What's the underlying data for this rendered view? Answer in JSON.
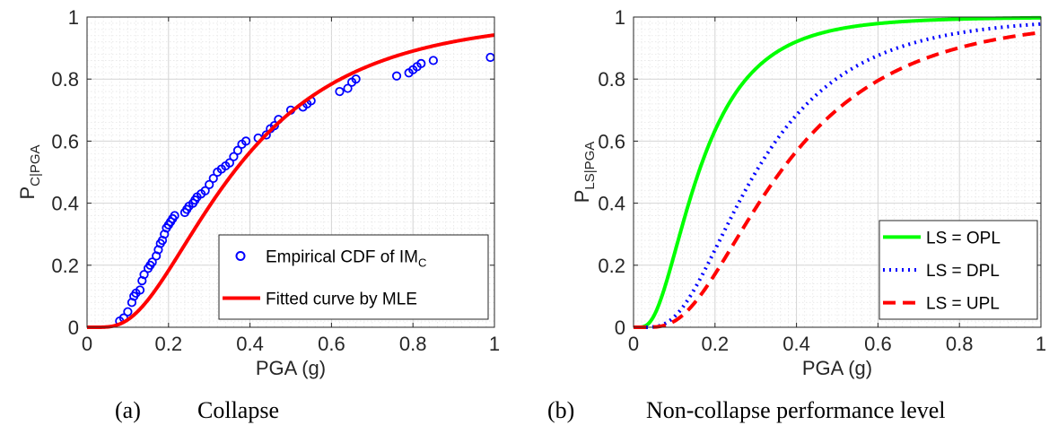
{
  "colors": {
    "red": "#ff0000",
    "green": "#00ff00",
    "blue": "#0000ff",
    "scatter": "#0000ff"
  },
  "chart_data": [
    {
      "type": "scatter",
      "caption_letter": "(a)",
      "caption_text": "Collapse",
      "xlabel": "PGA (g)",
      "ylabel_main": "P",
      "ylabel_sub": "C|PGA",
      "xlim": [
        0,
        1
      ],
      "ylim": [
        0,
        1
      ],
      "xticks": [
        "0",
        "0.2",
        "0.4",
        "0.6",
        "0.8",
        "1"
      ],
      "yticks": [
        "0",
        "0.2",
        "0.4",
        "0.6",
        "0.8",
        "1"
      ],
      "grid": true,
      "legend_position": "bottom-right",
      "legend": [
        {
          "label_main": "Empirical CDF of IM",
          "label_sub": "C",
          "style": "circle",
          "color": "#0000ff"
        },
        {
          "label_main": "Fitted curve by MLE",
          "label_sub": "",
          "style": "line",
          "color": "#ff0000"
        }
      ],
      "series": [
        {
          "kind": "points",
          "x": [
            0.08,
            0.09,
            0.1,
            0.11,
            0.115,
            0.12,
            0.13,
            0.135,
            0.14,
            0.15,
            0.155,
            0.16,
            0.17,
            0.175,
            0.18,
            0.185,
            0.19,
            0.195,
            0.2,
            0.205,
            0.21,
            0.215,
            0.24,
            0.245,
            0.25,
            0.26,
            0.265,
            0.27,
            0.28,
            0.29,
            0.3,
            0.31,
            0.32,
            0.33,
            0.34,
            0.35,
            0.36,
            0.37,
            0.38,
            0.39,
            0.42,
            0.44,
            0.45,
            0.46,
            0.47,
            0.5,
            0.53,
            0.54,
            0.55,
            0.62,
            0.64,
            0.65,
            0.66,
            0.76,
            0.79,
            0.8,
            0.81,
            0.82,
            0.85,
            0.99
          ],
          "y": [
            0.02,
            0.03,
            0.05,
            0.08,
            0.1,
            0.11,
            0.12,
            0.15,
            0.17,
            0.19,
            0.2,
            0.21,
            0.23,
            0.25,
            0.27,
            0.28,
            0.3,
            0.32,
            0.33,
            0.34,
            0.35,
            0.36,
            0.37,
            0.38,
            0.39,
            0.4,
            0.41,
            0.42,
            0.43,
            0.44,
            0.46,
            0.48,
            0.5,
            0.51,
            0.52,
            0.53,
            0.55,
            0.57,
            0.59,
            0.6,
            0.61,
            0.62,
            0.64,
            0.65,
            0.67,
            0.7,
            0.71,
            0.72,
            0.73,
            0.76,
            0.77,
            0.79,
            0.8,
            0.81,
            0.82,
            0.83,
            0.84,
            0.85,
            0.86,
            0.87
          ]
        },
        {
          "kind": "lognormal-cdf",
          "theta": 0.36,
          "beta": 0.65,
          "style": "solid",
          "color": "#ff0000"
        }
      ]
    },
    {
      "type": "line",
      "caption_letter": "(b)",
      "caption_text": "Non-collapse performance level",
      "xlabel": "PGA (g)",
      "ylabel_main": "P",
      "ylabel_sub": "LS|PGA",
      "xlim": [
        0,
        1
      ],
      "ylim": [
        0,
        1
      ],
      "xticks": [
        "0",
        "0.2",
        "0.4",
        "0.6",
        "0.8",
        "1"
      ],
      "yticks": [
        "0",
        "0.2",
        "0.4",
        "0.6",
        "0.8",
        "1"
      ],
      "grid": true,
      "legend_position": "bottom-right",
      "legend": [
        {
          "label_main": "LS = OPL",
          "label_sub": "",
          "style": "solid",
          "color": "#00ff00"
        },
        {
          "label_main": "LS = DPL",
          "label_sub": "",
          "style": "dotted",
          "color": "#0000ff"
        },
        {
          "label_main": "LS = UPL",
          "label_sub": "",
          "style": "dashed",
          "color": "#ff0000"
        }
      ],
      "series": [
        {
          "kind": "lognormal-cdf",
          "name": "LS = OPL",
          "theta": 0.16,
          "beta": 0.65,
          "style": "solid",
          "color": "#00ff00"
        },
        {
          "kind": "lognormal-cdf",
          "name": "LS = DPL",
          "theta": 0.3,
          "beta": 0.6,
          "style": "dotted",
          "color": "#0000ff"
        },
        {
          "kind": "lognormal-cdf",
          "name": "LS = UPL",
          "theta": 0.36,
          "beta": 0.62,
          "style": "dashed",
          "color": "#ff0000"
        }
      ]
    }
  ]
}
